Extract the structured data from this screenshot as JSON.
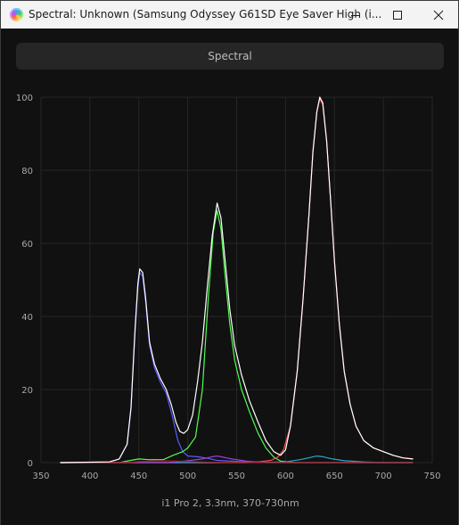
{
  "window": {
    "title": "Spectral: Unknown (Samsung Odyssey G61SD Eye Saver High (i...",
    "icons": {
      "app": "app-spectrum-icon",
      "minimize": "minimize-icon",
      "maximize": "maximize-icon",
      "close": "close-icon"
    }
  },
  "tab": {
    "label": "Spectral"
  },
  "footer": {
    "label": "i1 Pro 2, 3.3nm, 370-730nm"
  },
  "colors": {
    "background": "#111111",
    "grid": "#262626",
    "total": "#ffffff",
    "red": "#ff4a4a",
    "green": "#4dff4d",
    "blue": "#5a5aff",
    "cyan": "#2aa8c8",
    "purple": "#a040d0",
    "dark_red": "#a02020"
  },
  "chart_data": {
    "type": "line",
    "xlim": [
      350,
      750
    ],
    "ylim": [
      0,
      100
    ],
    "x_ticks": [
      "350",
      "400",
      "450",
      "500",
      "550",
      "600",
      "650",
      "700",
      "750"
    ],
    "y_ticks": [
      "0",
      "20",
      "40",
      "60",
      "80",
      "100"
    ],
    "grid": true,
    "series": [
      {
        "color": "#5a5aff",
        "points": [
          [
            370,
            0
          ],
          [
            420,
            0.2
          ],
          [
            430,
            1
          ],
          [
            438,
            5
          ],
          [
            442,
            15
          ],
          [
            446,
            35
          ],
          [
            449,
            48
          ],
          [
            451,
            52
          ],
          [
            454,
            51
          ],
          [
            457,
            44
          ],
          [
            461,
            32
          ],
          [
            466,
            26
          ],
          [
            472,
            22
          ],
          [
            478,
            19
          ],
          [
            484,
            13
          ],
          [
            490,
            6
          ],
          [
            495,
            3
          ],
          [
            500,
            1.8
          ],
          [
            510,
            1.6
          ],
          [
            520,
            1.2
          ],
          [
            530,
            0.6
          ],
          [
            545,
            0.4
          ],
          [
            560,
            0.2
          ],
          [
            600,
            0
          ],
          [
            730,
            0
          ]
        ]
      },
      {
        "color": "#4dff4d",
        "points": [
          [
            370,
            0
          ],
          [
            430,
            0
          ],
          [
            440,
            0.5
          ],
          [
            450,
            1
          ],
          [
            460,
            0.8
          ],
          [
            475,
            0.8
          ],
          [
            485,
            2
          ],
          [
            495,
            3
          ],
          [
            500,
            4
          ],
          [
            508,
            7
          ],
          [
            515,
            20
          ],
          [
            521,
            45
          ],
          [
            526,
            63
          ],
          [
            530,
            69
          ],
          [
            534,
            64
          ],
          [
            538,
            52
          ],
          [
            543,
            38
          ],
          [
            548,
            28
          ],
          [
            555,
            20
          ],
          [
            563,
            14
          ],
          [
            572,
            8
          ],
          [
            580,
            4
          ],
          [
            588,
            1.5
          ],
          [
            595,
            0.4
          ],
          [
            610,
            0
          ],
          [
            730,
            0
          ]
        ]
      },
      {
        "color": "#ff4a4a",
        "points": [
          [
            370,
            0
          ],
          [
            560,
            0
          ],
          [
            575,
            0.3
          ],
          [
            585,
            0.6
          ],
          [
            592,
            1.5
          ],
          [
            598,
            3.5
          ],
          [
            605,
            10
          ],
          [
            612,
            25
          ],
          [
            618,
            45
          ],
          [
            624,
            68
          ],
          [
            628,
            85
          ],
          [
            632,
            96
          ],
          [
            635,
            99.5
          ],
          [
            638,
            98
          ],
          [
            642,
            88
          ],
          [
            646,
            72
          ],
          [
            650,
            55
          ],
          [
            655,
            38
          ],
          [
            660,
            25
          ],
          [
            666,
            16
          ],
          [
            672,
            10
          ],
          [
            680,
            6
          ],
          [
            690,
            4
          ],
          [
            700,
            3
          ],
          [
            710,
            2
          ],
          [
            720,
            1.3
          ],
          [
            730,
            1
          ]
        ]
      },
      {
        "color": "#2aa8c8",
        "points": [
          [
            370,
            0
          ],
          [
            560,
            0
          ],
          [
            600,
            0.2
          ],
          [
            615,
            0.8
          ],
          [
            625,
            1.4
          ],
          [
            632,
            1.8
          ],
          [
            638,
            1.6
          ],
          [
            648,
            1
          ],
          [
            660,
            0.5
          ],
          [
            680,
            0.2
          ],
          [
            700,
            0
          ],
          [
            730,
            0
          ]
        ]
      },
      {
        "color": "#a040d0",
        "points": [
          [
            370,
            0
          ],
          [
            480,
            0
          ],
          [
            500,
            0.5
          ],
          [
            515,
            1
          ],
          [
            525,
            1.6
          ],
          [
            530,
            1.8
          ],
          [
            536,
            1.5
          ],
          [
            545,
            1
          ],
          [
            560,
            0.4
          ],
          [
            580,
            0
          ],
          [
            730,
            0
          ]
        ]
      },
      {
        "color": "#a02020",
        "points": [
          [
            370,
            0
          ],
          [
            440,
            0
          ],
          [
            450,
            0.3
          ],
          [
            470,
            0.5
          ],
          [
            490,
            0.4
          ],
          [
            510,
            0.2
          ],
          [
            540,
            0
          ],
          [
            730,
            0
          ]
        ]
      },
      {
        "color": "#ffffff",
        "points": [
          [
            370,
            0
          ],
          [
            420,
            0.2
          ],
          [
            430,
            1
          ],
          [
            438,
            5
          ],
          [
            442,
            15
          ],
          [
            446,
            36
          ],
          [
            449,
            49
          ],
          [
            451,
            53
          ],
          [
            454,
            52
          ],
          [
            457,
            45
          ],
          [
            461,
            33
          ],
          [
            466,
            27
          ],
          [
            472,
            23
          ],
          [
            478,
            20
          ],
          [
            483,
            16
          ],
          [
            488,
            11
          ],
          [
            492,
            8.5
          ],
          [
            496,
            8
          ],
          [
            500,
            9
          ],
          [
            505,
            13
          ],
          [
            510,
            22
          ],
          [
            515,
            33
          ],
          [
            520,
            48
          ],
          [
            525,
            62
          ],
          [
            530,
            71
          ],
          [
            534,
            67
          ],
          [
            538,
            56
          ],
          [
            543,
            42
          ],
          [
            548,
            32
          ],
          [
            555,
            24
          ],
          [
            563,
            17
          ],
          [
            572,
            11
          ],
          [
            580,
            6
          ],
          [
            588,
            3
          ],
          [
            595,
            2
          ],
          [
            600,
            3.5
          ],
          [
            605,
            10
          ],
          [
            612,
            25
          ],
          [
            618,
            45
          ],
          [
            624,
            68
          ],
          [
            628,
            85
          ],
          [
            632,
            96
          ],
          [
            635,
            100
          ],
          [
            638,
            98.5
          ],
          [
            642,
            88
          ],
          [
            646,
            72
          ],
          [
            650,
            55
          ],
          [
            655,
            38
          ],
          [
            660,
            25
          ],
          [
            666,
            16
          ],
          [
            672,
            10
          ],
          [
            680,
            6
          ],
          [
            690,
            4
          ],
          [
            700,
            3
          ],
          [
            710,
            2
          ],
          [
            720,
            1.3
          ],
          [
            730,
            1
          ]
        ]
      }
    ]
  }
}
